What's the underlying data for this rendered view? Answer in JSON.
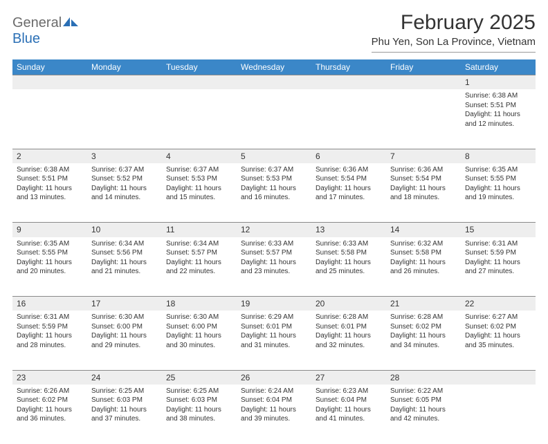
{
  "logo": {
    "general": "General",
    "blue": "Blue"
  },
  "title": "February 2025",
  "location": "Phu Yen, Son La Province, Vietnam",
  "colors": {
    "header_bg": "#3b87c8",
    "header_text": "#ffffff",
    "daynum_bg": "#eeeeee",
    "rule": "#8a8a8a",
    "text": "#333333",
    "logo_gray": "#6b6b6b",
    "logo_blue": "#2a6fb5"
  },
  "weekdays": [
    "Sunday",
    "Monday",
    "Tuesday",
    "Wednesday",
    "Thursday",
    "Friday",
    "Saturday"
  ],
  "weeks": [
    [
      {
        "n": "",
        "lines": [
          "",
          "",
          "",
          ""
        ]
      },
      {
        "n": "",
        "lines": [
          "",
          "",
          "",
          ""
        ]
      },
      {
        "n": "",
        "lines": [
          "",
          "",
          "",
          ""
        ]
      },
      {
        "n": "",
        "lines": [
          "",
          "",
          "",
          ""
        ]
      },
      {
        "n": "",
        "lines": [
          "",
          "",
          "",
          ""
        ]
      },
      {
        "n": "",
        "lines": [
          "",
          "",
          "",
          ""
        ]
      },
      {
        "n": "1",
        "lines": [
          "Sunrise: 6:38 AM",
          "Sunset: 5:51 PM",
          "Daylight: 11 hours",
          "and 12 minutes."
        ]
      }
    ],
    [
      {
        "n": "2",
        "lines": [
          "Sunrise: 6:38 AM",
          "Sunset: 5:51 PM",
          "Daylight: 11 hours",
          "and 13 minutes."
        ]
      },
      {
        "n": "3",
        "lines": [
          "Sunrise: 6:37 AM",
          "Sunset: 5:52 PM",
          "Daylight: 11 hours",
          "and 14 minutes."
        ]
      },
      {
        "n": "4",
        "lines": [
          "Sunrise: 6:37 AM",
          "Sunset: 5:53 PM",
          "Daylight: 11 hours",
          "and 15 minutes."
        ]
      },
      {
        "n": "5",
        "lines": [
          "Sunrise: 6:37 AM",
          "Sunset: 5:53 PM",
          "Daylight: 11 hours",
          "and 16 minutes."
        ]
      },
      {
        "n": "6",
        "lines": [
          "Sunrise: 6:36 AM",
          "Sunset: 5:54 PM",
          "Daylight: 11 hours",
          "and 17 minutes."
        ]
      },
      {
        "n": "7",
        "lines": [
          "Sunrise: 6:36 AM",
          "Sunset: 5:54 PM",
          "Daylight: 11 hours",
          "and 18 minutes."
        ]
      },
      {
        "n": "8",
        "lines": [
          "Sunrise: 6:35 AM",
          "Sunset: 5:55 PM",
          "Daylight: 11 hours",
          "and 19 minutes."
        ]
      }
    ],
    [
      {
        "n": "9",
        "lines": [
          "Sunrise: 6:35 AM",
          "Sunset: 5:55 PM",
          "Daylight: 11 hours",
          "and 20 minutes."
        ]
      },
      {
        "n": "10",
        "lines": [
          "Sunrise: 6:34 AM",
          "Sunset: 5:56 PM",
          "Daylight: 11 hours",
          "and 21 minutes."
        ]
      },
      {
        "n": "11",
        "lines": [
          "Sunrise: 6:34 AM",
          "Sunset: 5:57 PM",
          "Daylight: 11 hours",
          "and 22 minutes."
        ]
      },
      {
        "n": "12",
        "lines": [
          "Sunrise: 6:33 AM",
          "Sunset: 5:57 PM",
          "Daylight: 11 hours",
          "and 23 minutes."
        ]
      },
      {
        "n": "13",
        "lines": [
          "Sunrise: 6:33 AM",
          "Sunset: 5:58 PM",
          "Daylight: 11 hours",
          "and 25 minutes."
        ]
      },
      {
        "n": "14",
        "lines": [
          "Sunrise: 6:32 AM",
          "Sunset: 5:58 PM",
          "Daylight: 11 hours",
          "and 26 minutes."
        ]
      },
      {
        "n": "15",
        "lines": [
          "Sunrise: 6:31 AM",
          "Sunset: 5:59 PM",
          "Daylight: 11 hours",
          "and 27 minutes."
        ]
      }
    ],
    [
      {
        "n": "16",
        "lines": [
          "Sunrise: 6:31 AM",
          "Sunset: 5:59 PM",
          "Daylight: 11 hours",
          "and 28 minutes."
        ]
      },
      {
        "n": "17",
        "lines": [
          "Sunrise: 6:30 AM",
          "Sunset: 6:00 PM",
          "Daylight: 11 hours",
          "and 29 minutes."
        ]
      },
      {
        "n": "18",
        "lines": [
          "Sunrise: 6:30 AM",
          "Sunset: 6:00 PM",
          "Daylight: 11 hours",
          "and 30 minutes."
        ]
      },
      {
        "n": "19",
        "lines": [
          "Sunrise: 6:29 AM",
          "Sunset: 6:01 PM",
          "Daylight: 11 hours",
          "and 31 minutes."
        ]
      },
      {
        "n": "20",
        "lines": [
          "Sunrise: 6:28 AM",
          "Sunset: 6:01 PM",
          "Daylight: 11 hours",
          "and 32 minutes."
        ]
      },
      {
        "n": "21",
        "lines": [
          "Sunrise: 6:28 AM",
          "Sunset: 6:02 PM",
          "Daylight: 11 hours",
          "and 34 minutes."
        ]
      },
      {
        "n": "22",
        "lines": [
          "Sunrise: 6:27 AM",
          "Sunset: 6:02 PM",
          "Daylight: 11 hours",
          "and 35 minutes."
        ]
      }
    ],
    [
      {
        "n": "23",
        "lines": [
          "Sunrise: 6:26 AM",
          "Sunset: 6:02 PM",
          "Daylight: 11 hours",
          "and 36 minutes."
        ]
      },
      {
        "n": "24",
        "lines": [
          "Sunrise: 6:25 AM",
          "Sunset: 6:03 PM",
          "Daylight: 11 hours",
          "and 37 minutes."
        ]
      },
      {
        "n": "25",
        "lines": [
          "Sunrise: 6:25 AM",
          "Sunset: 6:03 PM",
          "Daylight: 11 hours",
          "and 38 minutes."
        ]
      },
      {
        "n": "26",
        "lines": [
          "Sunrise: 6:24 AM",
          "Sunset: 6:04 PM",
          "Daylight: 11 hours",
          "and 39 minutes."
        ]
      },
      {
        "n": "27",
        "lines": [
          "Sunrise: 6:23 AM",
          "Sunset: 6:04 PM",
          "Daylight: 11 hours",
          "and 41 minutes."
        ]
      },
      {
        "n": "28",
        "lines": [
          "Sunrise: 6:22 AM",
          "Sunset: 6:05 PM",
          "Daylight: 11 hours",
          "and 42 minutes."
        ]
      },
      {
        "n": "",
        "lines": [
          "",
          "",
          "",
          ""
        ]
      }
    ]
  ]
}
